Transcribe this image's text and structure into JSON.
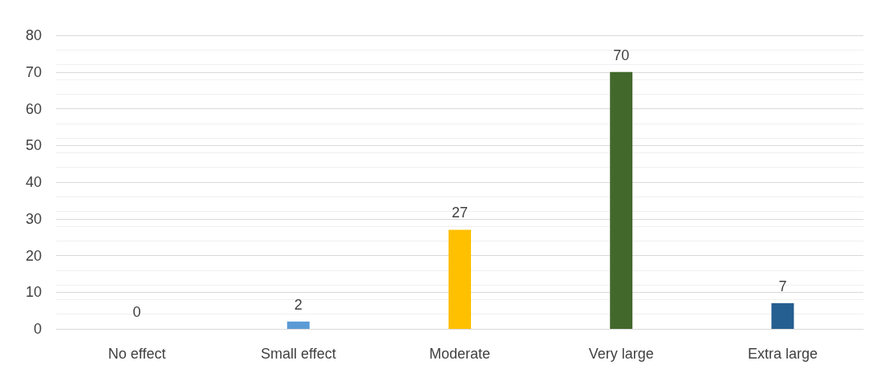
{
  "chart_data": {
    "type": "bar",
    "categories": [
      "No effect",
      "Small effect",
      "Moderate",
      "Very large",
      "Extra large"
    ],
    "values": [
      0,
      2,
      27,
      70,
      7
    ],
    "colors": [
      "#4472c4",
      "#5b9bd5",
      "#ffc000",
      "#43682b",
      "#255e91"
    ],
    "ylim": [
      0,
      80
    ],
    "yticks": [
      0,
      10,
      20,
      30,
      40,
      50,
      60,
      70,
      80
    ],
    "grid": "y",
    "data_labels": true
  }
}
